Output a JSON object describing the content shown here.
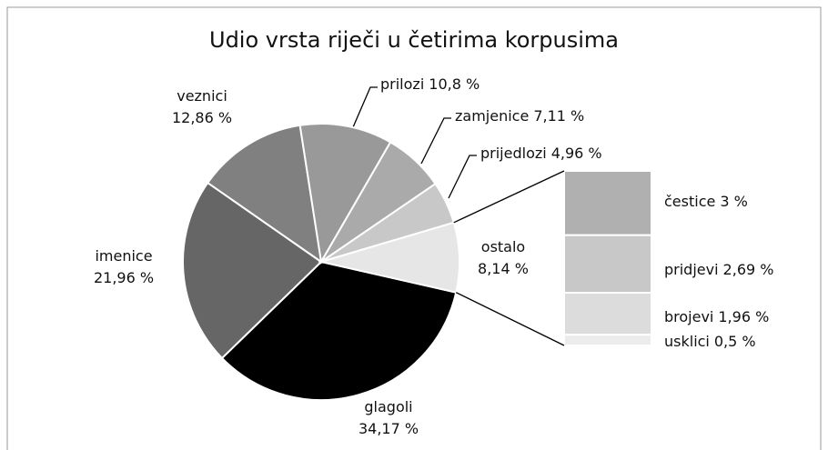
{
  "chart_data": {
    "type": "pie-of-bar",
    "title": "Udio vrsta riječi u četirima korpusima",
    "categories": [
      "glagoli",
      "imenice",
      "veznici",
      "prilozi",
      "zamjenice",
      "prijedlozi",
      "ostalo"
    ],
    "values": [
      34.17,
      21.96,
      12.86,
      10.8,
      7.11,
      4.96,
      8.14
    ],
    "value_labels": [
      "34,17 %",
      "21,96 %",
      "12,86 %",
      "10,8 %",
      "7,11 %",
      "4,96 %",
      "8,14 %"
    ],
    "colors": [
      "#000000",
      "#666666",
      "#808080",
      "#999999",
      "#aaaaaa",
      "#c8c8c8",
      "#e6e6e6"
    ],
    "bar_categories": [
      "čestice",
      "pridjevi",
      "brojevi",
      "usklici"
    ],
    "bar_values": [
      3,
      2.69,
      1.96,
      0.5
    ],
    "bar_value_labels": [
      "3 %",
      "2,69 %",
      "1,96 %",
      "0,5 %"
    ],
    "bar_colors": [
      "#b0b0b0",
      "#c8c8c8",
      "#dcdcdc",
      "#ececec"
    ]
  }
}
